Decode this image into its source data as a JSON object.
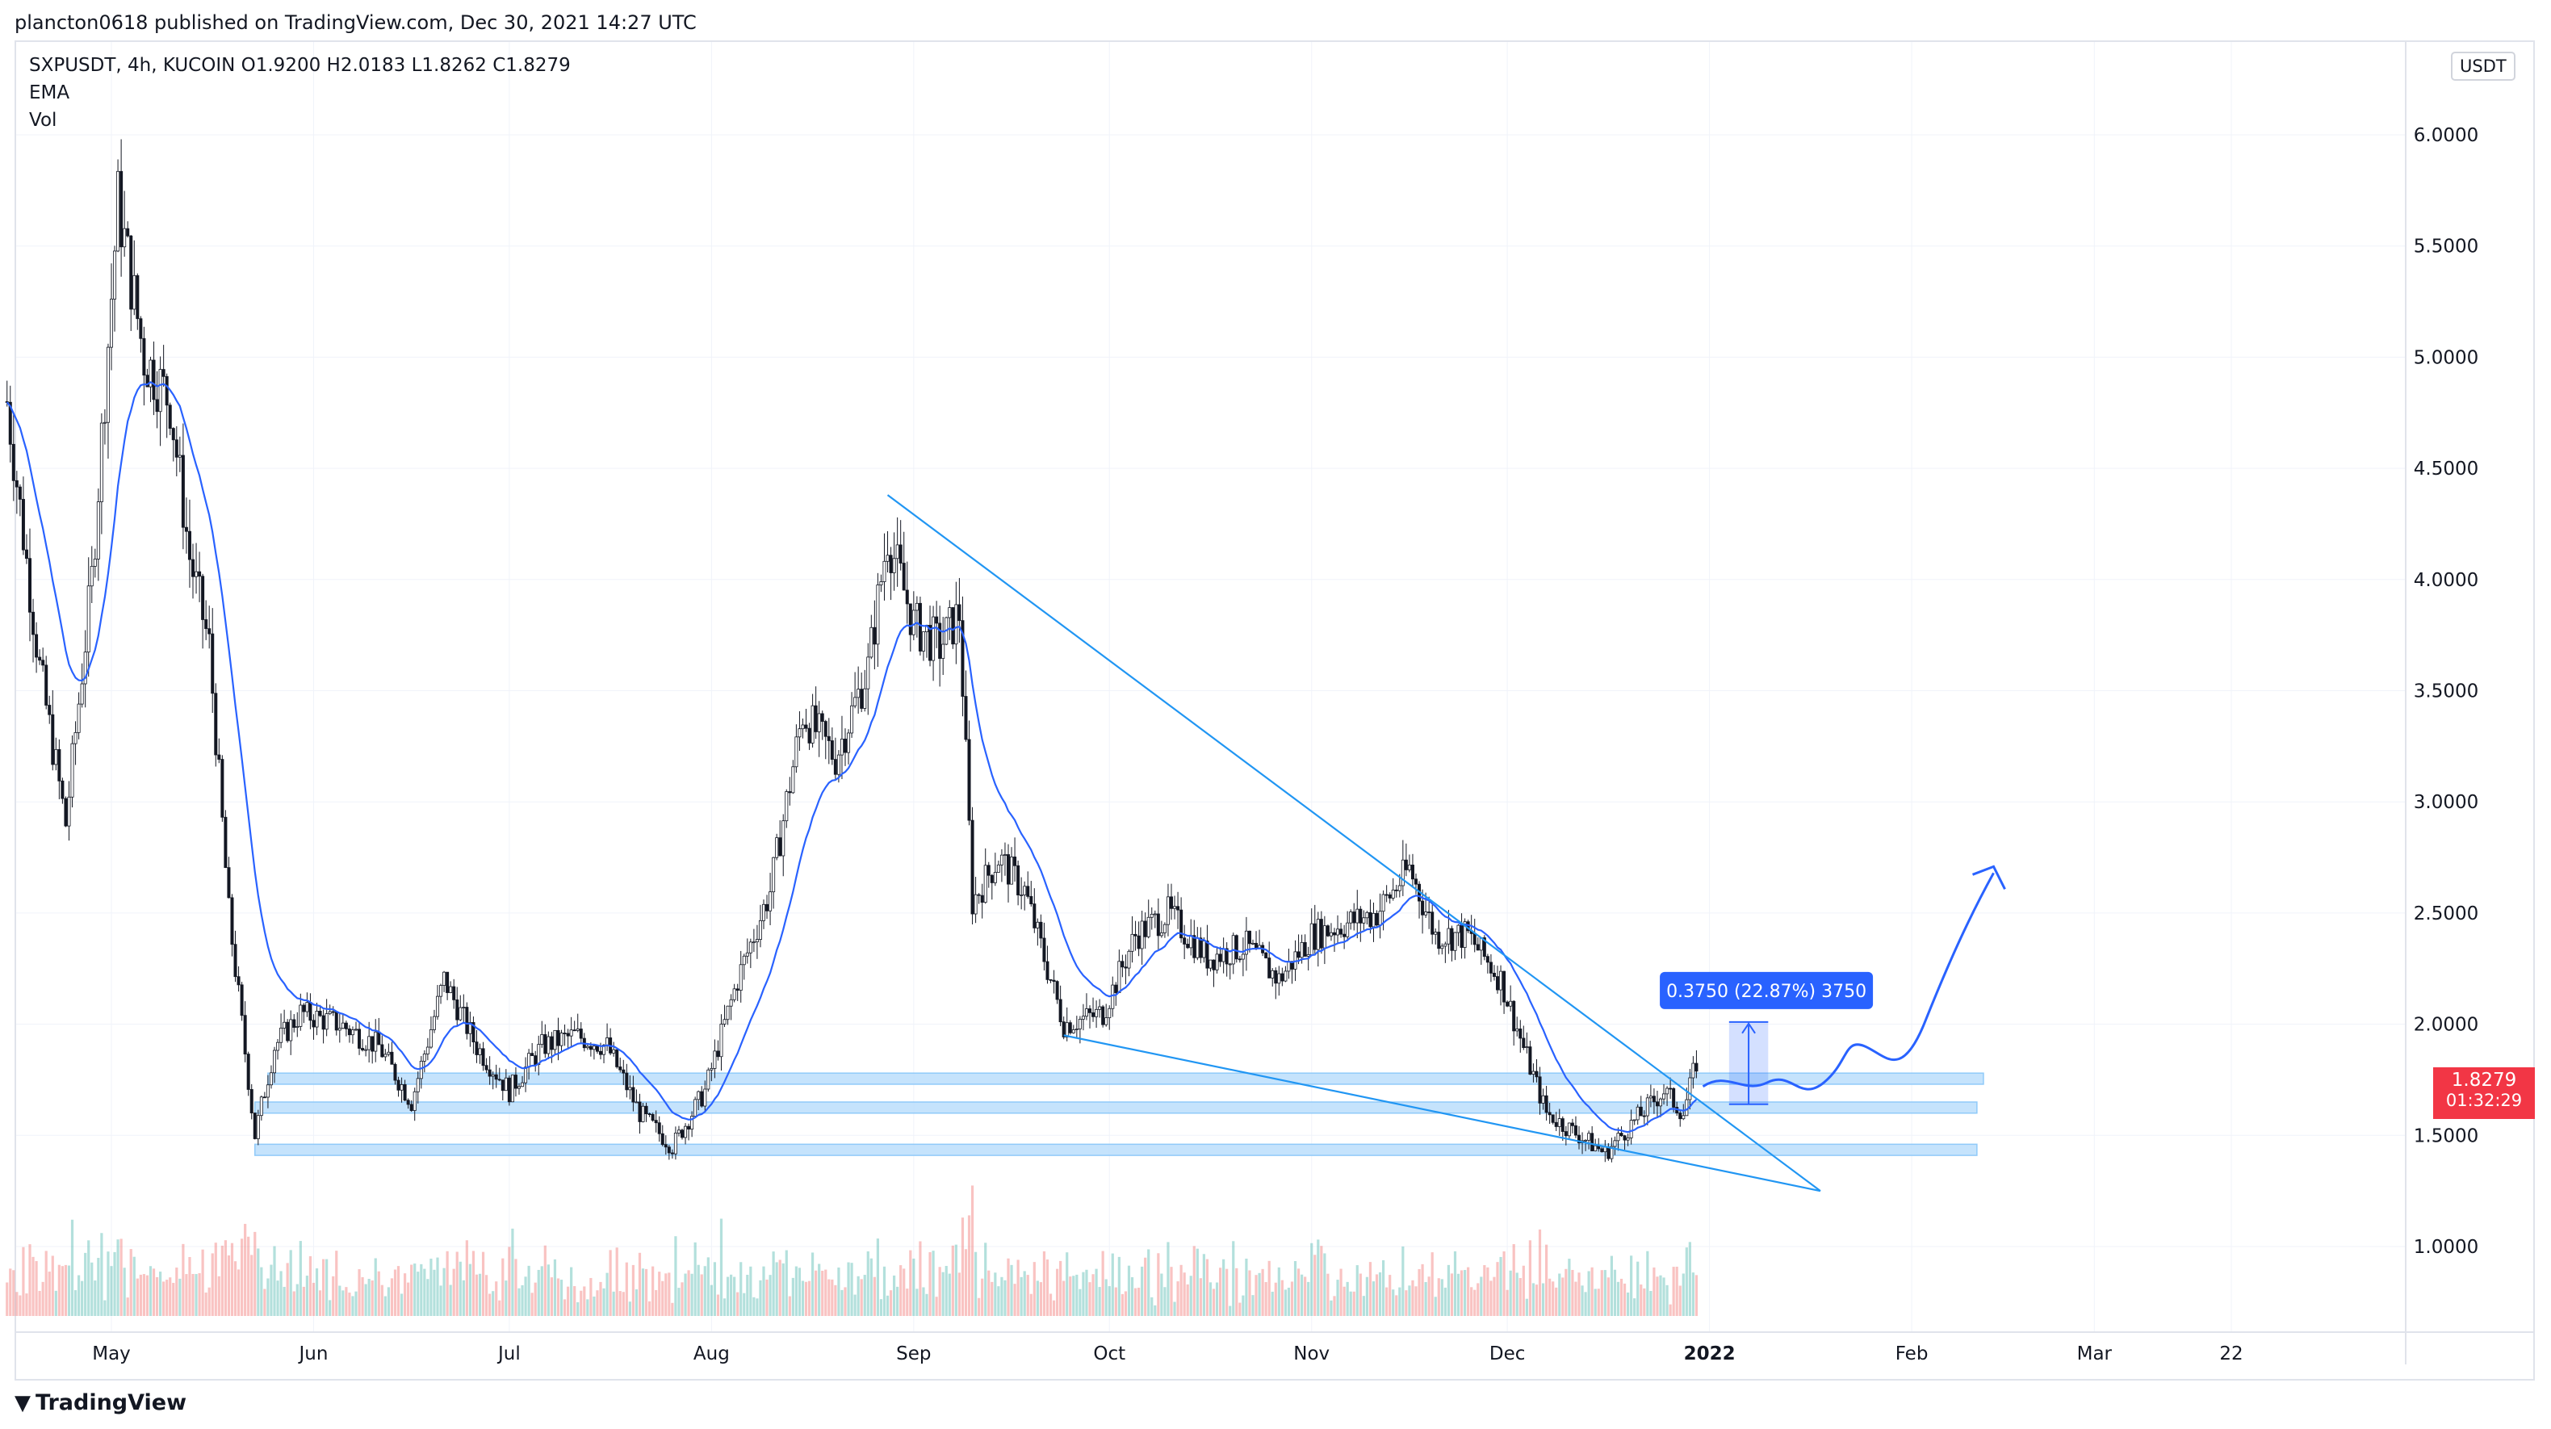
{
  "header": {
    "published": "plancton0618 published on TradingView.com, Dec 30, 2021 14:27 UTC"
  },
  "legend": {
    "symbol_line": "SXPUSDT, 4h, KUCOIN  O1.9200  H2.0183  L1.8262  C1.8279",
    "ema": "EMA",
    "vol": "Vol"
  },
  "axis": {
    "currency": "USDT"
  },
  "current": {
    "price": "1.8279",
    "countdown": "01:32:29"
  },
  "measure": {
    "label": "0.3750 (22.87%) 3750"
  },
  "footer": {
    "brand": "TradingView"
  },
  "colors": {
    "up": "#26a69a",
    "down": "#ef5350",
    "ema": "#2962ff",
    "trend": "#2196f3",
    "zone": "#bbdefb",
    "tag": "#f23645"
  },
  "chart_data": {
    "type": "candlestick",
    "symbol": "SXPUSDT",
    "timeframe": "4h",
    "exchange": "KUCOIN",
    "ohlc_last": {
      "open": 1.92,
      "high": 2.0183,
      "low": 1.8262,
      "close": 1.8279
    },
    "indicators": [
      "EMA",
      "Vol"
    ],
    "y_ticks": [
      "6.0000",
      "5.5000",
      "5.0000",
      "4.5000",
      "4.0000",
      "3.5000",
      "3.0000",
      "2.5000",
      "2.0000",
      "1.5000",
      "1.0000"
    ],
    "ylim": [
      0.7,
      6.4
    ],
    "x_ticks": [
      {
        "label": "May",
        "date": "2021-05-01"
      },
      {
        "label": "Jun",
        "date": "2021-06-01"
      },
      {
        "label": "Jul",
        "date": "2021-07-01"
      },
      {
        "label": "Aug",
        "date": "2021-08-01"
      },
      {
        "label": "Sep",
        "date": "2021-09-01"
      },
      {
        "label": "Oct",
        "date": "2021-10-01"
      },
      {
        "label": "Nov",
        "date": "2021-11-01"
      },
      {
        "label": "Dec",
        "date": "2021-12-01"
      },
      {
        "label": "2022",
        "date": "2022-01-01"
      },
      {
        "label": "Feb",
        "date": "2022-02-01"
      },
      {
        "label": "Mar",
        "date": "2022-03-01"
      },
      {
        "label": "22",
        "date": "2022-03-22"
      }
    ],
    "price_path": [
      [
        "2021-04-15",
        4.8
      ],
      [
        "2021-04-20",
        3.6
      ],
      [
        "2021-04-24",
        2.9
      ],
      [
        "2021-04-28",
        4.0
      ],
      [
        "2021-05-02",
        5.7
      ],
      [
        "2021-05-06",
        5.0
      ],
      [
        "2021-05-10",
        4.8
      ],
      [
        "2021-05-13",
        4.1
      ],
      [
        "2021-05-16",
        3.7
      ],
      [
        "2021-05-19",
        2.5
      ],
      [
        "2021-05-23",
        1.5
      ],
      [
        "2021-05-26",
        1.9
      ],
      [
        "2021-05-30",
        2.05
      ],
      [
        "2021-06-05",
        2.0
      ],
      [
        "2021-06-11",
        1.9
      ],
      [
        "2021-06-16",
        1.65
      ],
      [
        "2021-06-21",
        2.2
      ],
      [
        "2021-06-26",
        1.9
      ],
      [
        "2021-07-01",
        1.7
      ],
      [
        "2021-07-06",
        1.9
      ],
      [
        "2021-07-11",
        1.95
      ],
      [
        "2021-07-16",
        1.9
      ],
      [
        "2021-07-21",
        1.6
      ],
      [
        "2021-07-26",
        1.45
      ],
      [
        "2021-07-31",
        1.7
      ],
      [
        "2021-08-05",
        2.2
      ],
      [
        "2021-08-10",
        2.6
      ],
      [
        "2021-08-15",
        3.4
      ],
      [
        "2021-08-20",
        3.2
      ],
      [
        "2021-08-25",
        3.6
      ],
      [
        "2021-08-28",
        4.2
      ],
      [
        "2021-09-01",
        3.8
      ],
      [
        "2021-09-05",
        3.7
      ],
      [
        "2021-09-08",
        3.85
      ],
      [
        "2021-09-10",
        2.55
      ],
      [
        "2021-09-14",
        2.75
      ],
      [
        "2021-09-18",
        2.6
      ],
      [
        "2021-09-24",
        2.0
      ],
      [
        "2021-09-30",
        2.05
      ],
      [
        "2021-10-05",
        2.4
      ],
      [
        "2021-10-10",
        2.5
      ],
      [
        "2021-10-16",
        2.3
      ],
      [
        "2021-10-22",
        2.35
      ],
      [
        "2021-10-27",
        2.2
      ],
      [
        "2021-11-01",
        2.4
      ],
      [
        "2021-11-06",
        2.45
      ],
      [
        "2021-11-11",
        2.5
      ],
      [
        "2021-11-16",
        2.7
      ],
      [
        "2021-11-20",
        2.4
      ],
      [
        "2021-11-25",
        2.4
      ],
      [
        "2021-11-30",
        2.2
      ],
      [
        "2021-12-04",
        1.85
      ],
      [
        "2021-12-07",
        1.6
      ],
      [
        "2021-12-12",
        1.5
      ],
      [
        "2021-12-16",
        1.42
      ],
      [
        "2021-12-21",
        1.58
      ],
      [
        "2021-12-25",
        1.7
      ],
      [
        "2021-12-28",
        1.6
      ],
      [
        "2021-12-30",
        1.83
      ]
    ],
    "support_zones": [
      [
        1.73,
        1.78
      ],
      [
        1.6,
        1.65
      ],
      [
        1.41,
        1.46
      ]
    ],
    "trendlines": [
      {
        "from": [
          "2021-08-28",
          4.38
        ],
        "to": [
          "2022-01-18",
          1.25
        ]
      },
      {
        "from": [
          "2021-09-24",
          1.95
        ],
        "to": [
          "2022-01-18",
          1.25
        ]
      }
    ],
    "measure_box": {
      "from_date": "2022-01-04",
      "to_date": "2022-01-10",
      "low": 1.64,
      "high": 2.01
    }
  }
}
